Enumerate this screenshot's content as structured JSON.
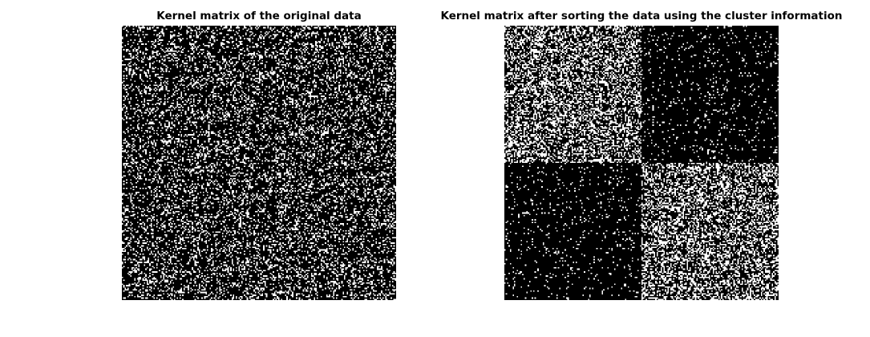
{
  "chart_data": [
    {
      "type": "heatmap",
      "title": "Kernel matrix of the original data",
      "matrix_size": 200,
      "ordering": "original",
      "colormap": [
        "#000000",
        "#ffffff"
      ],
      "xlabel": "",
      "ylabel": ""
    },
    {
      "type": "heatmap",
      "title": "Kernel matrix after sorting the data using the cluster information",
      "matrix_size": 200,
      "ordering": "sorted-by-cluster",
      "clusters": [
        100,
        100
      ],
      "colormap": [
        "#000000",
        "#ffffff"
      ],
      "xlabel": "",
      "ylabel": ""
    }
  ]
}
